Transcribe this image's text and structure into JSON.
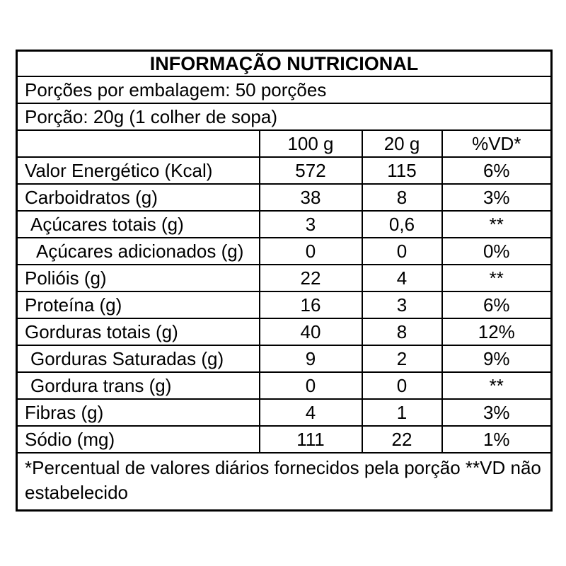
{
  "table": {
    "title": "INFORMAÇÃO NUTRICIONAL",
    "servings_line": "Porções por embalagem: 50 porções",
    "portion_line": "Porção: 20g (1 colher de sopa)",
    "columns": [
      "",
      "100 g",
      "20 g",
      "%VD*"
    ],
    "rows": [
      {
        "label": "Valor Energético (Kcal)",
        "per100": "572",
        "per20": "115",
        "vd": "6%",
        "indent": 0
      },
      {
        "label": "Carboidratos (g)",
        "per100": "38",
        "per20": "8",
        "vd": "3%",
        "indent": 0
      },
      {
        "label": "Açúcares totais (g)",
        "per100": "3",
        "per20": "0,6",
        "vd": "**",
        "indent": 1
      },
      {
        "label": "Açúcares adicionados (g)",
        "per100": "0",
        "per20": "0",
        "vd": "0%",
        "indent": 2
      },
      {
        "label": "Polióis (g)",
        "per100": "22",
        "per20": "4",
        "vd": "**",
        "indent": 0
      },
      {
        "label": "Proteína (g)",
        "per100": "16",
        "per20": "3",
        "vd": "6%",
        "indent": 0
      },
      {
        "label": "Gorduras totais (g)",
        "per100": "40",
        "per20": "8",
        "vd": "12%",
        "indent": 0
      },
      {
        "label": "Gorduras Saturadas (g)",
        "per100": "9",
        "per20": "2",
        "vd": "9%",
        "indent": 1
      },
      {
        "label": "Gordura trans (g)",
        "per100": "0",
        "per20": "0",
        "vd": "**",
        "indent": 1
      },
      {
        "label": "Fibras (g)",
        "per100": "4",
        "per20": "1",
        "vd": "3%",
        "indent": 0
      },
      {
        "label": "Sódio (mg)",
        "per100": "111",
        "per20": "22",
        "vd": "1%",
        "indent": 0
      }
    ],
    "footnote": "*Percentual de valores diários fornecidos pela porção **VD não estabelecido",
    "colors": {
      "border": "#000000",
      "text": "#000000",
      "background": "#ffffff"
    }
  }
}
